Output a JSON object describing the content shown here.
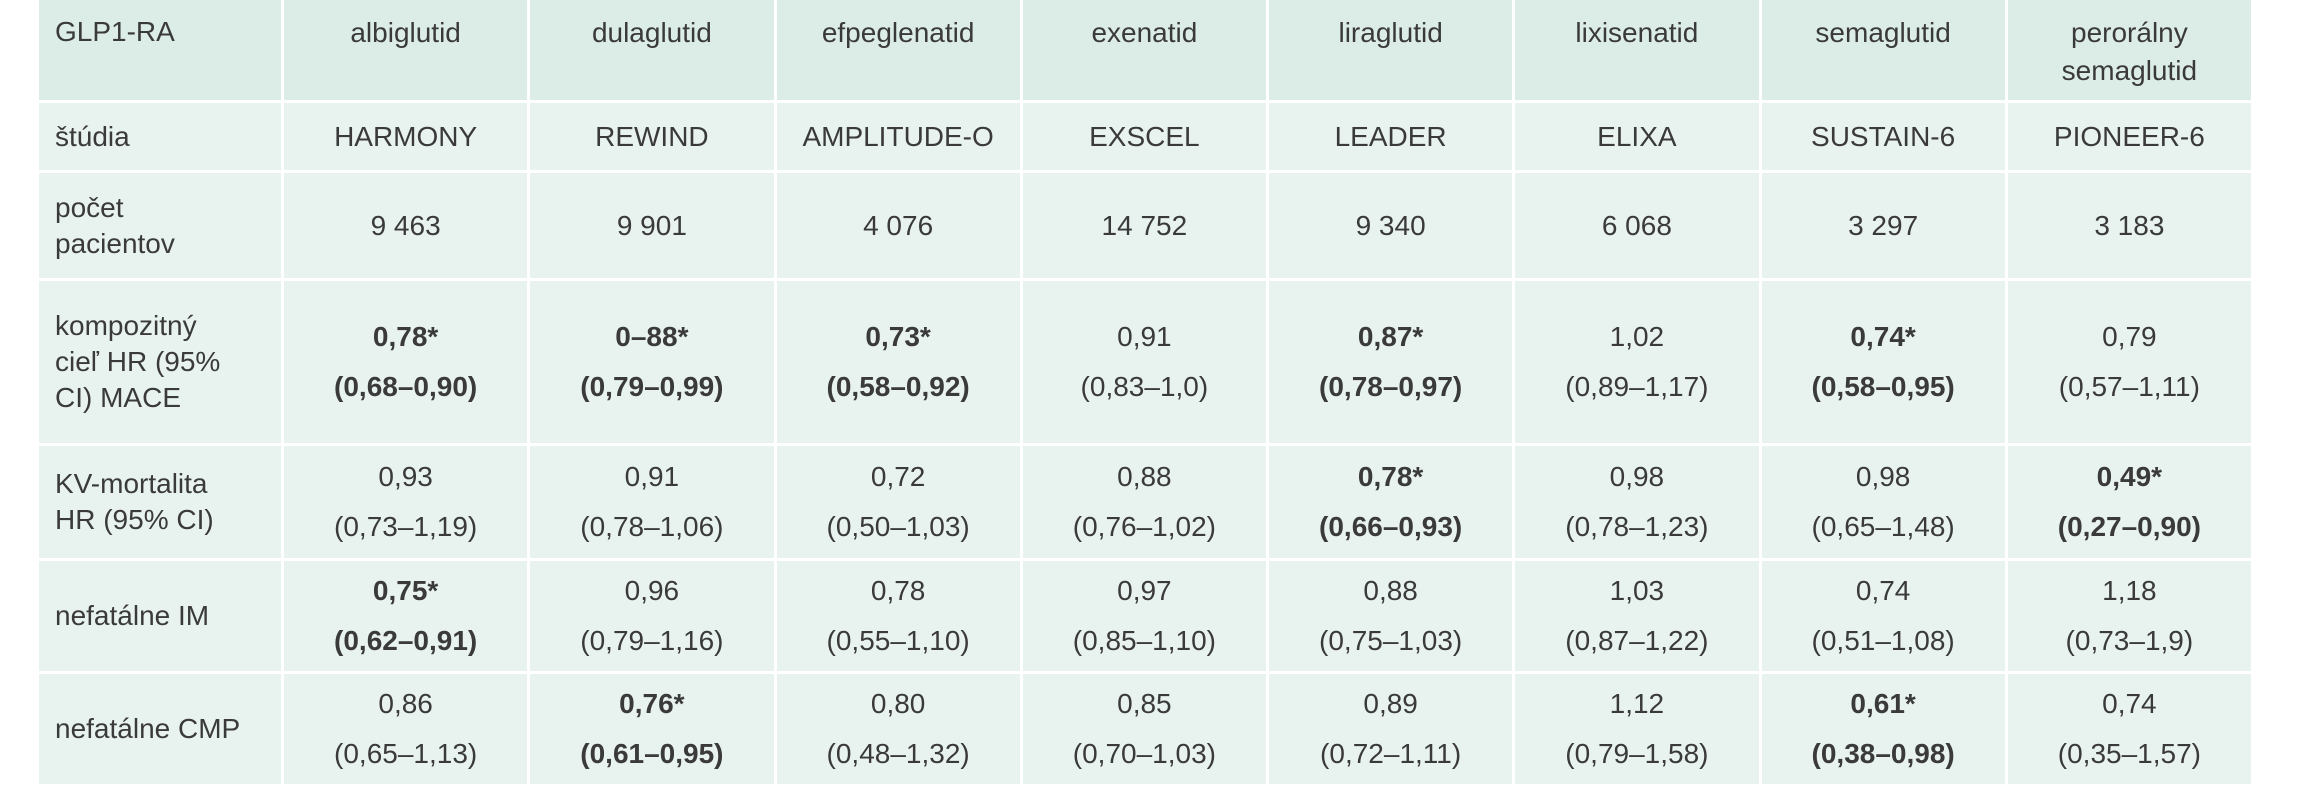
{
  "header": {
    "first": "GLP1-RA",
    "drugs": [
      "albiglutid",
      "dulaglutid",
      "efpeglenatid",
      "exenatid",
      "liraglutid",
      "lixisenatid",
      "semaglutid",
      "perorálny semaglutid"
    ]
  },
  "studies": {
    "label": "štúdia",
    "values": [
      "HARMONY",
      "REWIND",
      "AMPLITUDE-O",
      "EXSCEL",
      "LEADER",
      "ELIXA",
      "SUSTAIN-6",
      "PIONEER-6"
    ]
  },
  "patients": {
    "label": "počet pacientov",
    "values": [
      "9 463",
      "9 901",
      "4 076",
      "14 752",
      "9 340",
      "6 068",
      "3 297",
      "3 183"
    ]
  },
  "rows": [
    {
      "label": "kompozitný cieľ HR (95% CI) MACE",
      "cells": [
        {
          "value": "0,78*",
          "ci": "(0,68–0,90)",
          "bold": true
        },
        {
          "value": "0–88*",
          "ci": "(0,79–0,99)",
          "bold": true
        },
        {
          "value": "0,73*",
          "ci": "(0,58–0,92)",
          "bold": true
        },
        {
          "value": "0,91",
          "ci": "(0,83–1,0)",
          "bold": false
        },
        {
          "value": "0,87*",
          "ci": "(0,78–0,97)",
          "bold": true
        },
        {
          "value": "1,02",
          "ci": "(0,89–1,17)",
          "bold": false
        },
        {
          "value": "0,74*",
          "ci": "(0,58–0,95)",
          "bold": true
        },
        {
          "value": "0,79",
          "ci": "(0,57–1,11)",
          "bold": false
        }
      ]
    },
    {
      "label": "KV-mortalita HR (95% CI)",
      "cells": [
        {
          "value": "0,93",
          "ci": "(0,73–1,19)",
          "bold": false
        },
        {
          "value": "0,91",
          "ci": "(0,78–1,06)",
          "bold": false
        },
        {
          "value": "0,72",
          "ci": "(0,50–1,03)",
          "bold": false
        },
        {
          "value": "0,88",
          "ci": "(0,76–1,02)",
          "bold": false
        },
        {
          "value": "0,78*",
          "ci": "(0,66–0,93)",
          "bold": true
        },
        {
          "value": "0,98",
          "ci": "(0,78–1,23)",
          "bold": false
        },
        {
          "value": "0,98",
          "ci": "(0,65–1,48)",
          "bold": false
        },
        {
          "value": "0,49*",
          "ci": "(0,27–0,90)",
          "bold": true
        }
      ]
    },
    {
      "label": "nefatálne IM",
      "cells": [
        {
          "value": "0,75*",
          "ci": "(0,62–0,91)",
          "bold": true
        },
        {
          "value": "0,96",
          "ci": "(0,79–1,16)",
          "bold": false
        },
        {
          "value": "0,78",
          "ci": "(0,55–1,10)",
          "bold": false
        },
        {
          "value": "0,97",
          "ci": "(0,85–1,10)",
          "bold": false
        },
        {
          "value": "0,88",
          "ci": "(0,75–1,03)",
          "bold": false
        },
        {
          "value": "1,03",
          "ci": "(0,87–1,22)",
          "bold": false
        },
        {
          "value": "0,74",
          "ci": "(0,51–1,08)",
          "bold": false
        },
        {
          "value": "1,18",
          "ci": "(0,73–1,9)",
          "bold": false
        }
      ]
    },
    {
      "label": "nefatálne CMP",
      "cells": [
        {
          "value": "0,86",
          "ci": "(0,65–1,13)",
          "bold": false
        },
        {
          "value": "0,76*",
          "ci": "(0,61–0,95)",
          "bold": true
        },
        {
          "value": "0,80",
          "ci": "(0,48–1,32)",
          "bold": false
        },
        {
          "value": "0,85",
          "ci": "(0,70–1,03)",
          "bold": false
        },
        {
          "value": "0,89",
          "ci": "(0,72–1,11)",
          "bold": false
        },
        {
          "value": "1,12",
          "ci": "(0,79–1,58)",
          "bold": false
        },
        {
          "value": "0,61*",
          "ci": "(0,38–0,98)",
          "bold": true
        },
        {
          "value": "0,74",
          "ci": "(0,35–1,57)",
          "bold": false
        }
      ]
    }
  ],
  "colors": {
    "cell_bg": "#e8f3ef",
    "header_bg": "#dcece6",
    "text": "#3a3a3a"
  }
}
